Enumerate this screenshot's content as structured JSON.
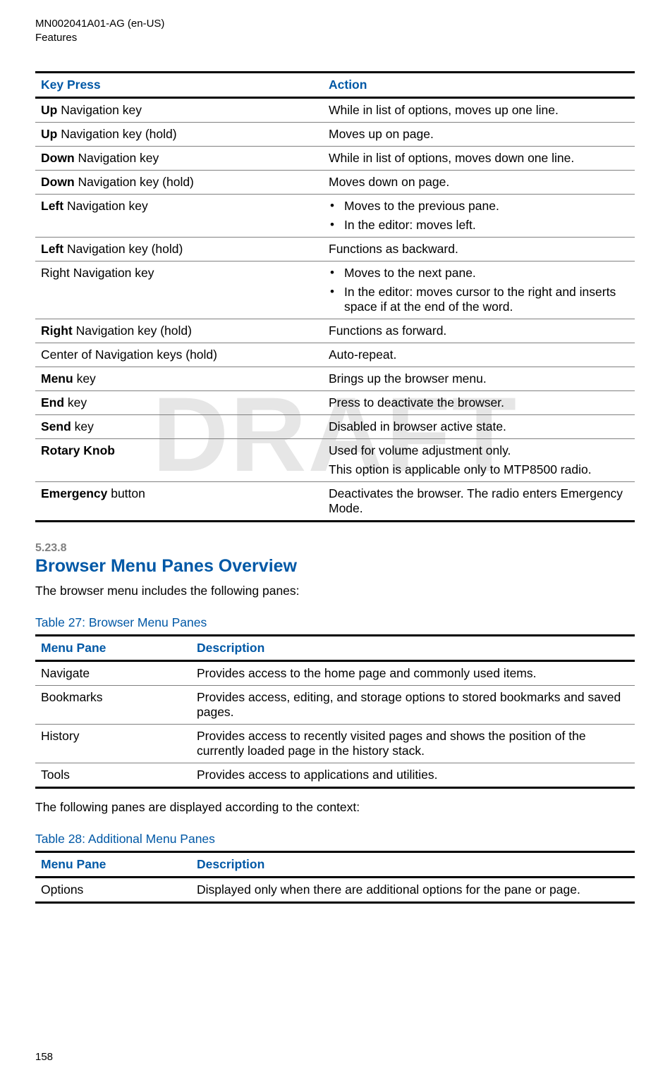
{
  "header": {
    "doc_id": "MN002041A01-AG (en-US)",
    "section": "Features"
  },
  "watermark": "DRAFT",
  "table1": {
    "columns": [
      "Key Press",
      "Action"
    ],
    "col_widths": [
      "48%",
      "52%"
    ],
    "header_color": "#0058a6",
    "border_heavy": "#000000",
    "border_light": "#808080",
    "fontsize": 17.5,
    "rows": [
      {
        "key_bold": "Up",
        "key_rest": " Navigation key",
        "action_plain": "While in list of options, moves up one line."
      },
      {
        "key_bold": "Up",
        "key_rest": " Navigation key (hold)",
        "action_plain": "Moves up on page."
      },
      {
        "key_bold": "Down",
        "key_rest": " Navigation key",
        "action_plain": "While in list of options, moves down one line."
      },
      {
        "key_bold": "Down",
        "key_rest": " Navigation key (hold)",
        "action_plain": "Moves down on page."
      },
      {
        "key_bold": "Left",
        "key_rest": " Navigation key",
        "action_list": [
          "Moves to the previous pane.",
          "In the editor: moves left."
        ]
      },
      {
        "key_bold": "Left",
        "key_rest": " Navigation key (hold)",
        "action_plain": "Functions as backward."
      },
      {
        "key_bold": "",
        "key_rest": "Right Navigation key",
        "action_list": [
          "Moves to the next pane.",
          "In the editor: moves cursor to the right and inserts space if at the end of the word."
        ]
      },
      {
        "key_bold": "Right",
        "key_rest": " Navigation key (hold)",
        "action_plain": "Functions as forward."
      },
      {
        "key_bold": "",
        "key_rest": "Center of Navigation keys (hold)",
        "action_plain": "Auto-repeat."
      },
      {
        "key_bold": "Menu",
        "key_rest": " key",
        "action_plain": "Brings up the browser menu."
      },
      {
        "key_bold": "End",
        "key_rest": " key",
        "action_plain": "Press to deactivate the browser."
      },
      {
        "key_bold": "Send",
        "key_rest": " key",
        "action_plain": "Disabled in browser active state."
      },
      {
        "key_bold": "Rotary Knob",
        "key_rest": "",
        "action_multi": [
          "Used for volume adjustment only.",
          "This option is applicable only to MTP8500 radio."
        ]
      },
      {
        "key_bold": "Emergency",
        "key_rest": " button",
        "action_plain": "Deactivates the browser. The radio enters Emergency Mode."
      }
    ]
  },
  "section_heading": {
    "number": "5.23.8",
    "title": "Browser Menu Panes Overview",
    "number_color": "#808080",
    "title_color": "#0058a6",
    "title_fontsize": 25
  },
  "intro_text": "The browser menu includes the following panes:",
  "table27_caption": "Table 27: Browser Menu Panes",
  "table2": {
    "columns": [
      "Menu Pane",
      "Description"
    ],
    "col_widths": [
      "26%",
      "74%"
    ],
    "rows": [
      {
        "pane": "Navigate",
        "desc": "Provides access to the home page and commonly used items."
      },
      {
        "pane": "Bookmarks",
        "desc": "Provides access, editing, and storage options to stored bookmarks and saved pages."
      },
      {
        "pane": "History",
        "desc": "Provides access to recently visited pages and shows the position of the currently loaded page in the history stack."
      },
      {
        "pane": "Tools",
        "desc": "Provides access to applications and utilities."
      }
    ]
  },
  "mid_text": "The following panes are displayed according to the context:",
  "table28_caption": "Table 28: Additional Menu Panes",
  "table3": {
    "columns": [
      "Menu Pane",
      "Description"
    ],
    "col_widths": [
      "26%",
      "74%"
    ],
    "rows": [
      {
        "pane": "Options",
        "desc": "Displayed only when there are additional options for the pane or page."
      }
    ]
  },
  "page_number": "158",
  "colors": {
    "blue": "#0058a6",
    "grey": "#808080",
    "watermark": "#e6e6e6",
    "text": "#000000",
    "background": "#ffffff"
  }
}
